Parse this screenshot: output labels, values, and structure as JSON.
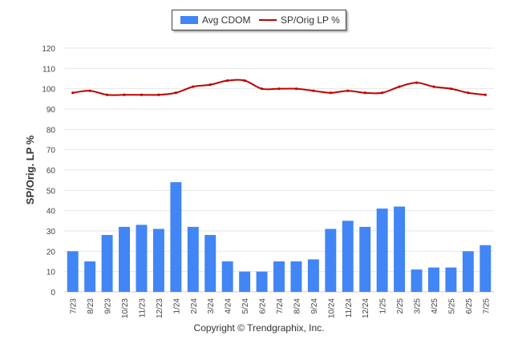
{
  "chart_data": {
    "type": "bar",
    "categories": [
      "7/23",
      "8/23",
      "9/23",
      "10/23",
      "11/23",
      "12/23",
      "1/24",
      "2/24",
      "3/24",
      "4/24",
      "5/24",
      "6/24",
      "7/24",
      "8/24",
      "9/24",
      "10/24",
      "11/24",
      "12/24",
      "1/25",
      "2/25",
      "3/25",
      "4/25",
      "5/25",
      "6/25",
      "7/25"
    ],
    "series": [
      {
        "name": "Avg CDOM",
        "type": "bar",
        "color": "#4285f4",
        "values": [
          20,
          15,
          28,
          32,
          33,
          31,
          54,
          32,
          28,
          15,
          10,
          10,
          15,
          15,
          16,
          31,
          35,
          32,
          41,
          42,
          11,
          12,
          12,
          20,
          23
        ]
      },
      {
        "name": "SP/Orig LP %",
        "type": "line",
        "color": "#c00000",
        "values": [
          98,
          99,
          97,
          97,
          97,
          97,
          98,
          101,
          102,
          104,
          104,
          100,
          100,
          100,
          99,
          98,
          99,
          98,
          98,
          101,
          103,
          101,
          100,
          98,
          97
        ]
      }
    ],
    "ylabel": "SP/Orig. LP %",
    "xlabel": "",
    "ylim": [
      0,
      120
    ],
    "yticks": [
      0,
      10,
      20,
      30,
      40,
      50,
      60,
      70,
      80,
      90,
      100,
      110,
      120
    ],
    "grid": true,
    "legend": "top-center"
  },
  "legend": {
    "bar_label": "Avg CDOM",
    "line_label": "SP/Orig LP %"
  },
  "footer": {
    "copyright": "Copyright © Trendgraphix, Inc."
  }
}
